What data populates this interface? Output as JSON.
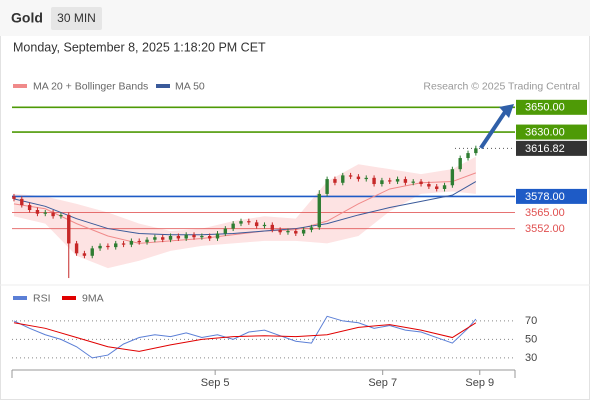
{
  "header": {
    "title": "Gold",
    "timeframe": "30 MIN",
    "datetime": "Monday, September 8, 2025 1:18:20 PM CET"
  },
  "chart_data": [
    {
      "type": "candlestick",
      "source": "Research © 2025 Trading Central",
      "xlim": [
        -0.25,
        64
      ],
      "ylim": [
        3508,
        3664
      ],
      "ohlc": {
        "up_color": "#2e7d32",
        "down_color": "#c62828",
        "open": [
          3578,
          3576,
          3571,
          3567,
          3564,
          3565,
          3562,
          3563,
          3540,
          3532,
          3530,
          3536,
          3538,
          3537,
          3540,
          3539,
          3542,
          3541,
          3543,
          3545,
          3543,
          3546,
          3544,
          3547,
          3545,
          3546,
          3544,
          3548,
          3552,
          3556,
          3558,
          3557,
          3554,
          3555,
          3551,
          3549,
          3550,
          3548,
          3551,
          3553,
          3580,
          3592,
          3589,
          3595,
          3594,
          3592,
          3593,
          3588,
          3591,
          3590,
          3592,
          3589,
          3590,
          3588,
          3586,
          3584,
          3587,
          3600,
          3609,
          3613
        ],
        "high": [
          3580,
          3578,
          3573,
          3569,
          3567,
          3567,
          3565,
          3565,
          3542,
          3534,
          3538,
          3540,
          3540,
          3542,
          3542,
          3544,
          3544,
          3545,
          3547,
          3547,
          3548,
          3548,
          3549,
          3549,
          3548,
          3548,
          3550,
          3554,
          3558,
          3560,
          3560,
          3559,
          3557,
          3557,
          3553,
          3552,
          3552,
          3553,
          3555,
          3583,
          3594,
          3594,
          3597,
          3597,
          3596,
          3595,
          3595,
          3593,
          3593,
          3594,
          3594,
          3592,
          3592,
          3590,
          3588,
          3589,
          3602,
          3611,
          3615,
          3619
        ],
        "low": [
          3574,
          3569,
          3565,
          3562,
          3562,
          3560,
          3560,
          3512,
          3530,
          3528,
          3528,
          3534,
          3535,
          3535,
          3537,
          3537,
          3539,
          3539,
          3541,
          3541,
          3541,
          3542,
          3542,
          3543,
          3543,
          3542,
          3542,
          3546,
          3550,
          3554,
          3555,
          3552,
          3552,
          3549,
          3547,
          3547,
          3546,
          3546,
          3549,
          3551,
          3578,
          3587,
          3587,
          3592,
          3590,
          3590,
          3586,
          3586,
          3588,
          3588,
          3587,
          3587,
          3586,
          3584,
          3582,
          3582,
          3585,
          3598,
          3607,
          3611
        ],
        "close": [
          3576,
          3571,
          3567,
          3564,
          3565,
          3562,
          3563,
          3540,
          3532,
          3530,
          3536,
          3538,
          3537,
          3540,
          3539,
          3542,
          3541,
          3543,
          3545,
          3543,
          3546,
          3544,
          3547,
          3545,
          3546,
          3544,
          3548,
          3552,
          3556,
          3558,
          3557,
          3554,
          3555,
          3551,
          3549,
          3550,
          3548,
          3551,
          3553,
          3580,
          3592,
          3589,
          3595,
          3594,
          3592,
          3593,
          3588,
          3591,
          3590,
          3592,
          3589,
          3590,
          3588,
          3586,
          3584,
          3587,
          3600,
          3609,
          3613,
          3616.82
        ]
      },
      "overlays": [
        {
          "name": "MA 20 + Bollinger Bands",
          "color": "#f08a8a",
          "band_color": "#fde3e3",
          "x": [
            0,
            4,
            8,
            12,
            16,
            20,
            24,
            28,
            32,
            36,
            40,
            44,
            48,
            52,
            56,
            59
          ],
          "values": [
            3572,
            3568,
            3556,
            3546,
            3540,
            3542,
            3544,
            3547,
            3550,
            3551,
            3558,
            3572,
            3584,
            3589,
            3590,
            3597
          ],
          "upper": [
            3580,
            3578,
            3572,
            3565,
            3556,
            3550,
            3552,
            3558,
            3562,
            3560,
            3590,
            3604,
            3600,
            3596,
            3600,
            3610
          ],
          "lower": [
            3562,
            3556,
            3530,
            3520,
            3526,
            3534,
            3538,
            3540,
            3542,
            3542,
            3540,
            3546,
            3566,
            3580,
            3582,
            3580
          ]
        },
        {
          "name": "MA 50",
          "color": "#3a5a9a",
          "x": [
            0,
            4,
            8,
            12,
            16,
            20,
            24,
            28,
            32,
            36,
            40,
            44,
            48,
            52,
            56,
            59
          ],
          "values": [
            3576,
            3570,
            3560,
            3552,
            3548,
            3547,
            3547,
            3548,
            3550,
            3552,
            3556,
            3563,
            3569,
            3574,
            3579,
            3590
          ]
        }
      ],
      "levels": [
        {
          "value": 3650,
          "label": "3650.00",
          "color": "#4e9a06",
          "box": true
        },
        {
          "value": 3630,
          "label": "3630.00",
          "color": "#4e9a06",
          "box": true
        },
        {
          "value": 3616.82,
          "label": "3616.82",
          "color": "#333333",
          "box": true,
          "dotted": true
        },
        {
          "value": 3578,
          "label": "3578.00",
          "color": "#1e5bc6",
          "box": true
        },
        {
          "value": 3565,
          "label": "3565.00",
          "color": "#e05050",
          "box": false
        },
        {
          "value": 3552,
          "label": "3552.00",
          "color": "#e05050",
          "box": false
        }
      ]
    },
    {
      "type": "line",
      "xlim": [
        -0.25,
        64
      ],
      "ylim": [
        19,
        84
      ],
      "yticks": [
        30,
        50,
        70
      ],
      "xticks": [
        {
          "value": 25.7,
          "label": "Sep 5"
        },
        {
          "value": 47.1,
          "label": "Sep 7"
        },
        {
          "value": 59.5,
          "label": "Sep 9"
        }
      ],
      "series": [
        {
          "name": "RSI",
          "color": "#5b7fd6",
          "x": [
            0,
            2,
            4,
            6,
            8,
            10,
            12,
            14,
            16,
            18,
            20,
            22,
            24,
            26,
            28,
            30,
            32,
            34,
            36,
            38,
            40,
            42,
            44,
            46,
            48,
            50,
            52,
            54,
            56,
            58,
            59
          ],
          "values": [
            70,
            62,
            55,
            50,
            42,
            30,
            33,
            45,
            52,
            55,
            53,
            57,
            52,
            55,
            50,
            58,
            60,
            54,
            48,
            46,
            75,
            70,
            68,
            62,
            65,
            60,
            58,
            52,
            46,
            62,
            72
          ]
        },
        {
          "name": "9MA",
          "color": "#e00000",
          "x": [
            0,
            4,
            8,
            12,
            16,
            20,
            24,
            28,
            32,
            36,
            40,
            44,
            48,
            52,
            56,
            59
          ],
          "values": [
            68,
            62,
            52,
            42,
            37,
            44,
            50,
            53,
            54,
            53,
            55,
            63,
            66,
            60,
            52,
            68
          ]
        }
      ]
    }
  ]
}
